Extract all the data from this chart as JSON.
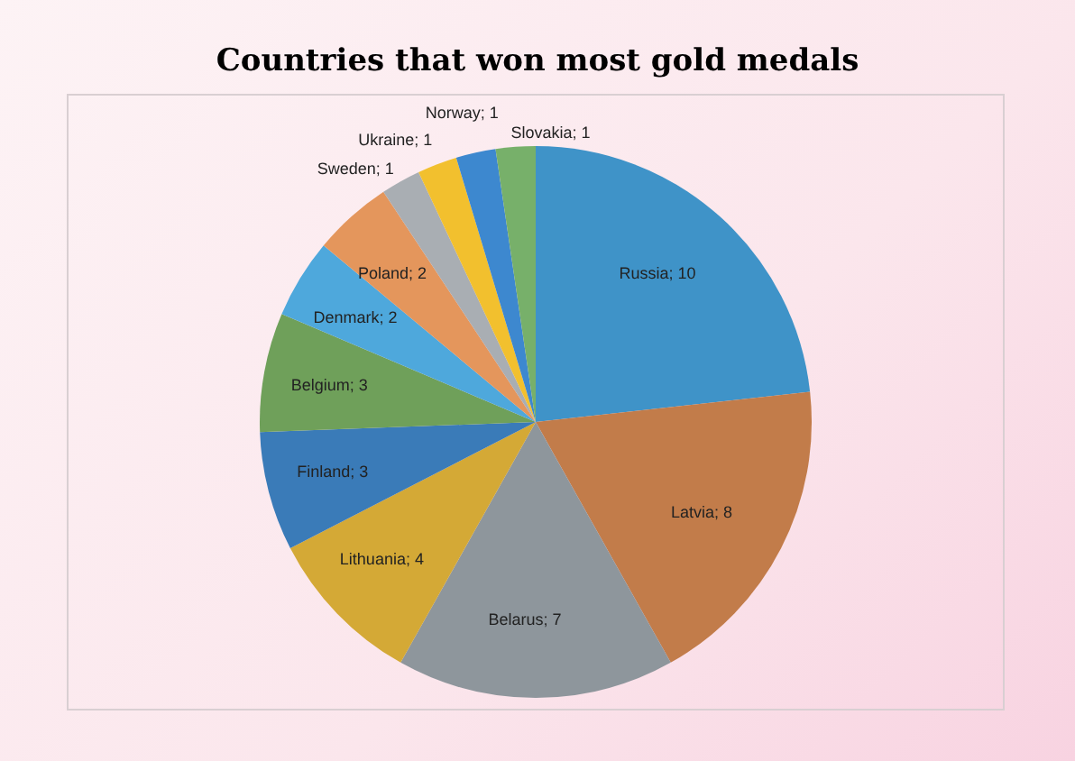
{
  "chart_data": {
    "type": "pie",
    "title": "Countries that won most gold medals",
    "categories": [
      "Russia",
      "Latvia",
      "Belarus",
      "Lithuania",
      "Finland",
      "Belgium",
      "Denmark",
      "Poland",
      "Sweden",
      "Ukraine",
      "Norway",
      "Slovakia"
    ],
    "values": [
      10,
      8,
      7,
      4,
      3,
      3,
      2,
      2,
      1,
      1,
      1,
      1
    ],
    "colors": [
      "#3f93c8",
      "#c27c4a",
      "#8e969c",
      "#d4a936",
      "#3a7bb8",
      "#6fa05a",
      "#4ea8dc",
      "#e4965c",
      "#a9aeb3",
      "#f2c02e",
      "#3d88cf",
      "#77b06a"
    ],
    "value_labels": [
      "; 10",
      "; 8",
      "; 7",
      "; 4",
      "; 3",
      "; 3",
      "; 2",
      "; 2",
      "; 1",
      "; 1",
      "; 1",
      "; 1"
    ],
    "legend": false
  }
}
